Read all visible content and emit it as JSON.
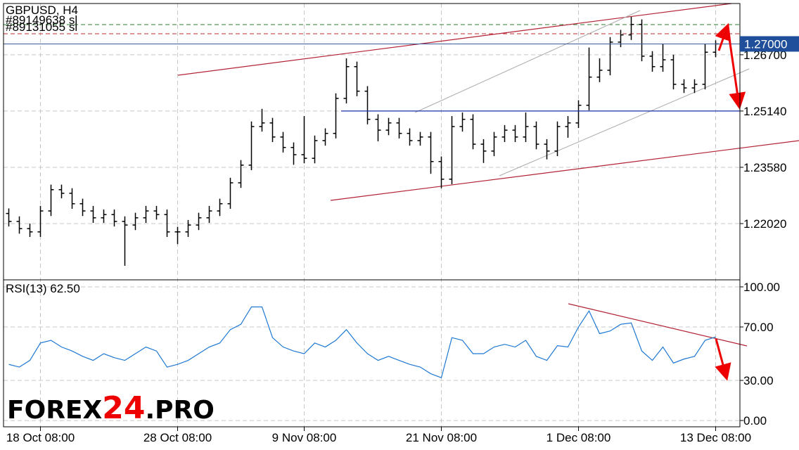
{
  "chart_data": [
    {
      "type": "ohlc",
      "title": "GBPUSD, H4",
      "annotations": [
        "#89149638 sl",
        "#89131055 sl"
      ],
      "open": [
        1.223,
        1.2208,
        1.2188,
        1.2179,
        1.2237,
        1.2296,
        1.2286,
        1.2257,
        1.2237,
        1.2218,
        1.2227,
        1.2208,
        1.2198,
        1.2218,
        1.2237,
        1.2227,
        1.2179,
        1.2179,
        1.2198,
        1.2218,
        1.2237,
        1.2257,
        1.2315,
        1.2364,
        1.2471,
        1.2481,
        1.2442,
        1.2413,
        1.2393,
        1.2383,
        1.2432,
        1.2452,
        1.2549,
        1.2637,
        1.2569,
        1.2491,
        1.2461,
        1.2481,
        1.2452,
        1.2432,
        1.2442,
        1.2374,
        1.2325,
        1.2471,
        1.2491,
        1.2422,
        1.2403,
        1.2442,
        1.2461,
        1.2442,
        1.2471,
        1.2422,
        1.2403,
        1.2471,
        1.2481,
        1.253,
        1.2608,
        1.2627,
        1.2705,
        1.2725,
        1.2754,
        1.2666,
        1.2637,
        1.2656,
        1.2588,
        1.2578,
        1.2588,
        1.2677
      ],
      "high": [
        1.2244,
        1.2222,
        1.2202,
        1.2251,
        1.231,
        1.231,
        1.23,
        1.2271,
        1.2251,
        1.2241,
        1.2241,
        1.2222,
        1.2232,
        1.2251,
        1.2251,
        1.2241,
        1.2193,
        1.2212,
        1.2232,
        1.2251,
        1.2271,
        1.2329,
        1.2378,
        1.2485,
        1.252,
        1.2495,
        1.2456,
        1.2427,
        1.25,
        1.2446,
        1.2466,
        1.2563,
        1.266,
        1.2651,
        1.2583,
        1.2505,
        1.2495,
        1.2495,
        1.2466,
        1.2456,
        1.2456,
        1.2388,
        1.25,
        1.251,
        1.2505,
        1.2436,
        1.2456,
        1.2475,
        1.2475,
        1.251,
        1.2485,
        1.2436,
        1.2485,
        1.25,
        1.2544,
        1.269,
        1.266,
        1.2719,
        1.2739,
        1.2775,
        1.2768,
        1.268,
        1.27,
        1.267,
        1.2602,
        1.2602,
        1.27,
        1.271
      ],
      "low": [
        1.2194,
        1.2174,
        1.2165,
        1.2165,
        1.2223,
        1.2272,
        1.2243,
        1.2223,
        1.2204,
        1.2204,
        1.2194,
        1.2085,
        1.2184,
        1.2204,
        1.2213,
        1.2165,
        1.2145,
        1.2165,
        1.2184,
        1.2204,
        1.2223,
        1.2243,
        1.2301,
        1.235,
        1.2457,
        1.2428,
        1.2399,
        1.2365,
        1.2369,
        1.2369,
        1.2418,
        1.2438,
        1.2535,
        1.2555,
        1.2477,
        1.243,
        1.2447,
        1.2438,
        1.2418,
        1.2418,
        1.234,
        1.23,
        1.2311,
        1.2457,
        1.2408,
        1.237,
        1.2389,
        1.2428,
        1.2428,
        1.2428,
        1.2408,
        1.238,
        1.2389,
        1.244,
        1.2467,
        1.2516,
        1.2594,
        1.2613,
        1.2691,
        1.2711,
        1.2652,
        1.2623,
        1.2623,
        1.2574,
        1.2564,
        1.2564,
        1.2574,
        1.2663
      ],
      "close": [
        1.2208,
        1.2188,
        1.2179,
        1.2237,
        1.2296,
        1.2286,
        1.2257,
        1.2237,
        1.2218,
        1.2227,
        1.2208,
        1.2198,
        1.2218,
        1.2237,
        1.2227,
        1.2179,
        1.2179,
        1.2198,
        1.2218,
        1.2237,
        1.2257,
        1.2315,
        1.2364,
        1.2471,
        1.2481,
        1.2442,
        1.2413,
        1.2393,
        1.2383,
        1.2432,
        1.2452,
        1.2549,
        1.2637,
        1.2569,
        1.2491,
        1.2461,
        1.2481,
        1.2452,
        1.2432,
        1.2442,
        1.2374,
        1.2325,
        1.2471,
        1.2491,
        1.2422,
        1.2403,
        1.2442,
        1.2461,
        1.2442,
        1.2471,
        1.2422,
        1.2403,
        1.2471,
        1.2481,
        1.253,
        1.2608,
        1.2627,
        1.2705,
        1.2725,
        1.2754,
        1.2666,
        1.2637,
        1.2656,
        1.2588,
        1.2578,
        1.2588,
        1.2677,
        1.27
      ],
      "color": "#000000",
      "ylim": [
        1.2048,
        1.2812
      ],
      "yticks": [
        {
          "value": 1.2202,
          "label": "1.22020"
        },
        {
          "value": 1.2358,
          "label": "1.23580"
        },
        {
          "value": 1.2514,
          "label": "1.25140"
        },
        {
          "value": 1.267,
          "label": "1.26700"
        }
      ],
      "last_price": {
        "value": 1.27,
        "label": "1.27000"
      },
      "xticks": [
        {
          "value": 3,
          "label": "18 Oct 08:00"
        },
        {
          "value": 16,
          "label": "28 Oct 08:00"
        },
        {
          "value": 28,
          "label": "9 Nov 08:00"
        },
        {
          "value": 41,
          "label": "21 Nov 08:00"
        },
        {
          "value": 54,
          "label": "1 Dec 08:00"
        },
        {
          "value": 67,
          "label": "13 Dec 08:00"
        }
      ],
      "grid": true
    },
    {
      "type": "line",
      "title": "RSI(13) 62.50",
      "color": "#1e78d2",
      "values": [
        42,
        40,
        45,
        58,
        60,
        55,
        52,
        48,
        45,
        50,
        47,
        45,
        50,
        55,
        52,
        40,
        42,
        45,
        50,
        55,
        58,
        68,
        72,
        85,
        85,
        62,
        55,
        52,
        50,
        58,
        55,
        60,
        68,
        58,
        50,
        45,
        48,
        45,
        42,
        40,
        35,
        32,
        62,
        60,
        50,
        50,
        55,
        57,
        55,
        60,
        48,
        45,
        56,
        55,
        70,
        82,
        65,
        67,
        72,
        73,
        52,
        45,
        55,
        43,
        46,
        48,
        60,
        62.5
      ],
      "ylim": [
        -4.7,
        104.2
      ],
      "yticks": [
        {
          "value": 0,
          "label": "0.00"
        },
        {
          "value": 30,
          "label": "30.00"
        },
        {
          "value": 70,
          "label": "70.00"
        },
        {
          "value": 100,
          "label": "100.00"
        }
      ],
      "grid": true
    }
  ],
  "logo": [
    "FOREX",
    "24",
    ".PRO"
  ]
}
